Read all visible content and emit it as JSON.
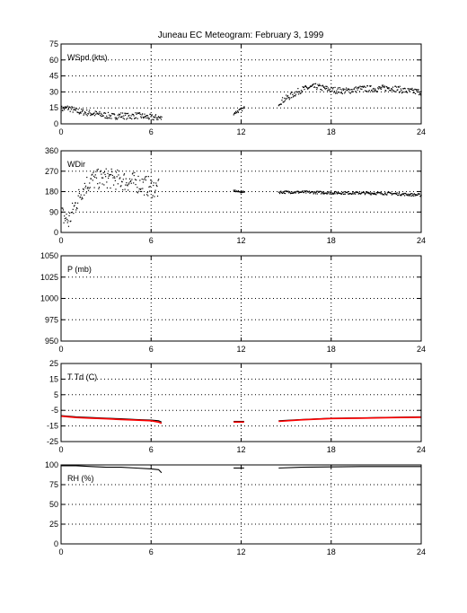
{
  "figure_title": "Juneau EC Meteogram:  February  3, 1999",
  "colors": {
    "axis": "#000000",
    "marker": "#000000",
    "temperature_line": "#000000",
    "dewpoint_line": "#ff0000"
  },
  "chart_data": [
    {
      "type": "scatter",
      "label": "WSpd (kts)",
      "xlim": [
        0,
        24
      ],
      "ylim": [
        0,
        75
      ],
      "xticks": [
        "0",
        "6",
        "12",
        "18",
        "24"
      ],
      "yticks": [
        "0",
        "15",
        "30",
        "45",
        "60",
        "75"
      ],
      "grid": true,
      "segments": [
        {
          "x": [
            0.0,
            0.5,
            1.0,
            1.5,
            2.0,
            2.5,
            3.0,
            3.5,
            4.0,
            4.5,
            5.0,
            5.5,
            6.0,
            6.5,
            6.7
          ],
          "y": [
            14,
            15,
            12,
            11,
            10,
            9,
            8,
            7,
            8,
            7,
            8,
            7,
            6,
            6,
            5
          ],
          "spread": 3
        },
        {
          "x": [
            11.5,
            11.8,
            12.1,
            12.2
          ],
          "y": [
            10,
            12,
            14,
            15
          ],
          "spread": 1.5
        },
        {
          "x": [
            14.5,
            15.0,
            15.5,
            16.0,
            16.5,
            17.0,
            18.0,
            19.0,
            20.0,
            21.0,
            22.0,
            23.0,
            24.0
          ],
          "y": [
            20,
            24,
            28,
            32,
            34,
            35,
            32,
            31,
            33,
            33,
            34,
            31,
            30
          ],
          "spread": 3
        }
      ]
    },
    {
      "type": "scatter",
      "label": "WDir",
      "xlim": [
        0,
        24
      ],
      "ylim": [
        0,
        360
      ],
      "xticks": [
        "0",
        "6",
        "12",
        "18",
        "24"
      ],
      "yticks": [
        "0",
        "90",
        "180",
        "270",
        "360"
      ],
      "grid": true,
      "segments": [
        {
          "x": [
            0.0,
            0.5,
            1.0,
            1.5,
            2.0,
            3.0,
            4.0,
            5.0,
            6.0,
            6.5
          ],
          "y": [
            80,
            50,
            130,
            200,
            230,
            240,
            230,
            220,
            200,
            190
          ],
          "spread": 45
        },
        {
          "x": [
            11.5,
            11.8,
            12.1,
            12.2
          ],
          "y": [
            185,
            180,
            178,
            180
          ],
          "spread": 4
        },
        {
          "x": [
            14.5,
            16.0,
            18.0,
            20.0,
            22.0,
            23.0,
            24.0
          ],
          "y": [
            178,
            178,
            175,
            174,
            172,
            168,
            165
          ],
          "spread": 6
        }
      ]
    },
    {
      "type": "scatter",
      "label": "P (mb)",
      "xlim": [
        0,
        24
      ],
      "ylim": [
        950,
        1050
      ],
      "xticks": [
        "0",
        "6",
        "12",
        "18",
        "24"
      ],
      "yticks": [
        "950",
        "975",
        "1000",
        "1025",
        "1050"
      ],
      "grid": true,
      "segments": []
    },
    {
      "type": "line",
      "label": "T Td (C)",
      "xlim": [
        0,
        24
      ],
      "ylim": [
        -25,
        35
      ],
      "xticks": [
        "0",
        "6",
        "12",
        "18",
        "24"
      ],
      "yticks": [
        "-25",
        "-15",
        "-5",
        "5",
        "15",
        "25"
      ],
      "grid": true,
      "series": [
        {
          "segments": [
            {
              "x": [
                0,
                1,
                2,
                3,
                4,
                5,
                6,
                6.5,
                6.7
              ],
              "y": [
                -5,
                -6,
                -6.5,
                -7,
                -7.5,
                -8,
                -8.5,
                -9,
                -10
              ]
            },
            {
              "x": [
                11.5,
                12.2
              ],
              "y": [
                -9.5,
                -9.5
              ]
            },
            {
              "x": [
                14.5,
                16,
                18,
                20,
                22,
                24
              ],
              "y": [
                -9,
                -8,
                -7,
                -6.8,
                -6.3,
                -6
              ]
            }
          ]
        },
        {
          "segments": [
            {
              "x": [
                0,
                1,
                2,
                3,
                4,
                5,
                6,
                6.5,
                6.7
              ],
              "y": [
                -5.5,
                -6.5,
                -7,
                -7.5,
                -8,
                -8.5,
                -9,
                -10,
                -11
              ]
            },
            {
              "x": [
                11.5,
                12.2
              ],
              "y": [
                -10,
                -10
              ]
            },
            {
              "x": [
                14.5,
                16,
                18,
                20,
                22,
                24
              ],
              "y": [
                -9.5,
                -8.3,
                -7.3,
                -7.0,
                -6.6,
                -6.3
              ]
            }
          ]
        }
      ]
    },
    {
      "type": "line",
      "label": "RH (%)",
      "xlim": [
        0,
        24
      ],
      "ylim": [
        0,
        100
      ],
      "xticks": [
        "0",
        "6",
        "12",
        "18",
        "24"
      ],
      "yticks": [
        "0",
        "25",
        "50",
        "75",
        "100"
      ],
      "grid": true,
      "series": [
        {
          "segments": [
            {
              "x": [
                0,
                1,
                2,
                3,
                4,
                5,
                6,
                6.5,
                6.7
              ],
              "y": [
                99,
                99,
                98,
                97,
                97,
                96,
                95,
                94,
                90
              ]
            },
            {
              "x": [
                11.5,
                12.2
              ],
              "y": [
                96,
                96
              ]
            },
            {
              "x": [
                14.5,
                16,
                18,
                20,
                22,
                24
              ],
              "y": [
                96,
                97,
                97.5,
                98,
                98,
                98
              ]
            }
          ]
        }
      ]
    }
  ]
}
